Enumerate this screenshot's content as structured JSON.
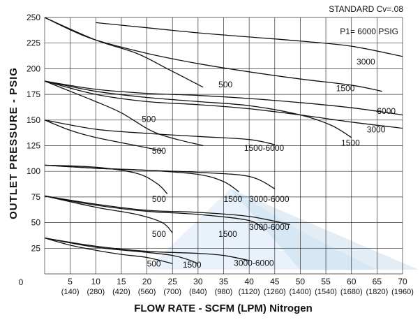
{
  "chart_data": {
    "type": "line",
    "subtitle": "STANDARD Cv=.08",
    "annotation": "P1= 6000 PSIG",
    "xlabel": "FLOW RATE - SCFM (LPM)  Nitrogen",
    "ylabel": "OUTLET PRESSURE - PSIG",
    "xlim": [
      0,
      70
    ],
    "ylim": [
      0,
      250
    ],
    "grid": true,
    "x_ticks": [
      0,
      5,
      10,
      15,
      20,
      25,
      30,
      35,
      40,
      45,
      50,
      55,
      60,
      65,
      70
    ],
    "x_tick_labels": [
      "0",
      "5",
      "10",
      "15",
      "20",
      "25",
      "30",
      "35",
      "40",
      "45",
      "50",
      "55",
      "60",
      "65",
      "70"
    ],
    "x_tick_labels_lpm": [
      "(140)",
      "(280)",
      "(420)",
      "(560)",
      "(700)",
      "(840)",
      "(980)",
      "(1120)",
      "(1260)",
      "(1400)",
      "(1540)",
      "(1680)",
      "(1820)",
      "(1960)"
    ],
    "y_ticks": [
      25,
      50,
      75,
      100,
      125,
      150,
      175,
      200,
      225,
      250
    ],
    "series": [
      {
        "name": "6000",
        "points": [
          [
            10,
            245
          ],
          [
            20,
            240
          ],
          [
            30,
            235
          ],
          [
            40,
            231
          ],
          [
            50,
            227
          ],
          [
            60,
            222
          ],
          [
            70,
            212
          ]
        ]
      },
      {
        "name": "3000",
        "points": [
          [
            0,
            250
          ],
          [
            5,
            238
          ],
          [
            10,
            228
          ],
          [
            20,
            215
          ],
          [
            30,
            205
          ],
          [
            40,
            197
          ],
          [
            50,
            190
          ],
          [
            60,
            184
          ],
          [
            66,
            178
          ]
        ]
      },
      {
        "name": "500",
        "points": [
          [
            0,
            250
          ],
          [
            10,
            228
          ],
          [
            18,
            215
          ],
          [
            24,
            200
          ],
          [
            31,
            182
          ]
        ]
      },
      {
        "name": "6000",
        "points": [
          [
            0,
            188
          ],
          [
            10,
            180
          ],
          [
            20,
            176
          ],
          [
            30,
            174
          ],
          [
            40,
            171
          ],
          [
            50,
            167
          ],
          [
            60,
            162
          ],
          [
            70,
            155
          ]
        ]
      },
      {
        "name": "1500",
        "points": [
          [
            0,
            188
          ],
          [
            10,
            178
          ],
          [
            20,
            172
          ],
          [
            30,
            168
          ],
          [
            40,
            164
          ],
          [
            50,
            155
          ],
          [
            56,
            145
          ],
          [
            60,
            133
          ]
        ]
      },
      {
        "name": "3000",
        "points": [
          [
            0,
            188
          ],
          [
            10,
            175
          ],
          [
            20,
            168
          ],
          [
            30,
            165
          ],
          [
            40,
            161
          ],
          [
            50,
            155
          ],
          [
            60,
            148
          ],
          [
            70,
            142
          ]
        ]
      },
      {
        "name": "500",
        "points": [
          [
            0,
            188
          ],
          [
            5,
            178
          ],
          [
            10,
            168
          ],
          [
            15,
            157
          ],
          [
            22,
            137
          ],
          [
            31,
            125
          ]
        ]
      },
      {
        "name": "500",
        "points": [
          [
            0,
            150
          ],
          [
            5,
            140
          ],
          [
            10,
            133
          ],
          [
            18,
            125
          ],
          [
            23,
            120
          ]
        ]
      },
      {
        "name": "1500-6000",
        "points": [
          [
            0,
            150
          ],
          [
            10,
            141
          ],
          [
            20,
            137
          ],
          [
            30,
            134
          ],
          [
            40,
            131
          ],
          [
            45,
            126
          ]
        ]
      },
      {
        "name": "500",
        "points": [
          [
            0,
            106
          ],
          [
            10,
            104
          ],
          [
            18,
            98
          ],
          [
            22,
            88
          ],
          [
            24,
            78
          ]
        ]
      },
      {
        "name": "1500",
        "points": [
          [
            0,
            106
          ],
          [
            10,
            103
          ],
          [
            20,
            101
          ],
          [
            30,
            97
          ],
          [
            35,
            90
          ],
          [
            38,
            80
          ]
        ]
      },
      {
        "name": "3000-6000",
        "points": [
          [
            0,
            106
          ],
          [
            10,
            103
          ],
          [
            20,
            101
          ],
          [
            30,
            99
          ],
          [
            40,
            95
          ],
          [
            45,
            83
          ]
        ]
      },
      {
        "name": "500",
        "points": [
          [
            0,
            76
          ],
          [
            10,
            65
          ],
          [
            18,
            58
          ],
          [
            23,
            50
          ],
          [
            25,
            40
          ]
        ]
      },
      {
        "name": "1500",
        "points": [
          [
            0,
            76
          ],
          [
            10,
            67
          ],
          [
            20,
            61
          ],
          [
            30,
            58
          ],
          [
            40,
            52
          ],
          [
            43,
            42
          ]
        ]
      },
      {
        "name": "3000-6000",
        "points": [
          [
            0,
            76
          ],
          [
            10,
            68
          ],
          [
            20,
            62
          ],
          [
            30,
            60
          ],
          [
            40,
            56
          ],
          [
            48,
            48
          ]
        ]
      },
      {
        "name": "500",
        "points": [
          [
            0,
            35
          ],
          [
            5,
            28
          ],
          [
            10,
            23
          ],
          [
            15,
            19
          ],
          [
            20,
            16
          ],
          [
            25,
            10
          ]
        ]
      },
      {
        "name": "1500",
        "points": [
          [
            0,
            35
          ],
          [
            10,
            26
          ],
          [
            20,
            21
          ],
          [
            25,
            18
          ],
          [
            28,
            14
          ],
          [
            30,
            10
          ]
        ]
      },
      {
        "name": "3000-6000",
        "points": [
          [
            0,
            35
          ],
          [
            10,
            27
          ],
          [
            20,
            22
          ],
          [
            30,
            20
          ],
          [
            35,
            18
          ],
          [
            40,
            13
          ]
        ]
      }
    ],
    "labels": [
      {
        "text": "3000",
        "x": 61,
        "y": 204
      },
      {
        "text": "500",
        "x": 34,
        "y": 182
      },
      {
        "text": "1500",
        "x": 57,
        "y": 178
      },
      {
        "text": "6000",
        "x": 65,
        "y": 156
      },
      {
        "text": "500",
        "x": 19,
        "y": 148
      },
      {
        "text": "3000",
        "x": 63,
        "y": 138
      },
      {
        "text": "1500",
        "x": 58,
        "y": 125
      },
      {
        "text": "1500-6000",
        "x": 39,
        "y": 120
      },
      {
        "text": "500",
        "x": 21,
        "y": 117
      },
      {
        "text": "500",
        "x": 21,
        "y": 70
      },
      {
        "text": "1500",
        "x": 35,
        "y": 70
      },
      {
        "text": "3000-6000",
        "x": 40,
        "y": 70
      },
      {
        "text": "3000-6000",
        "x": 40,
        "y": 43
      },
      {
        "text": "500",
        "x": 21,
        "y": 36
      },
      {
        "text": "1500",
        "x": 34,
        "y": 36
      },
      {
        "text": "500",
        "x": 20,
        "y": 7
      },
      {
        "text": "1500",
        "x": 27,
        "y": 6
      },
      {
        "text": "3000-6000",
        "x": 37,
        "y": 8
      }
    ]
  }
}
